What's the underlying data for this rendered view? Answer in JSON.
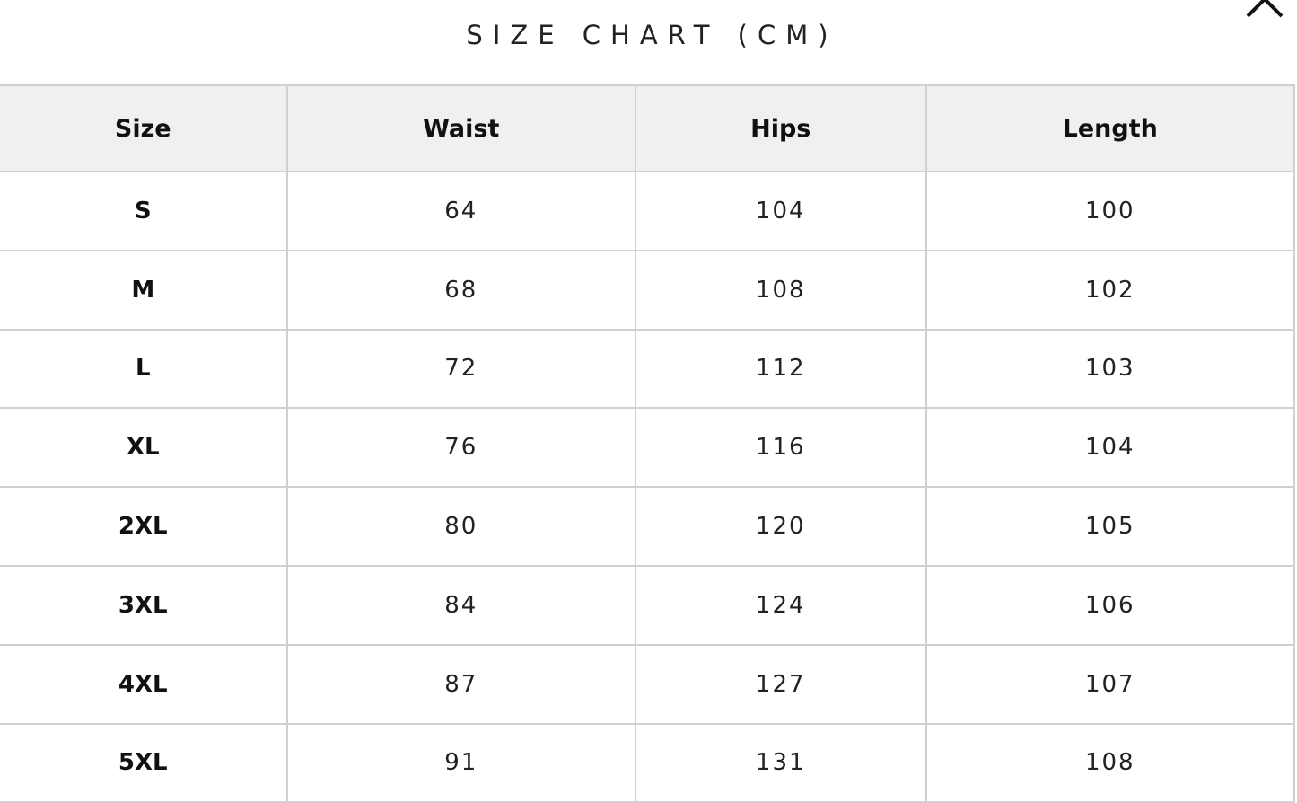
{
  "title": "SIZE CHART (CM)",
  "close_icon": "close-icon",
  "table": {
    "headers": [
      "Size",
      "Waist",
      "Hips",
      "Length"
    ],
    "rows": [
      [
        "S",
        "64",
        "104",
        "100"
      ],
      [
        "M",
        "68",
        "108",
        "102"
      ],
      [
        "L",
        "72",
        "112",
        "103"
      ],
      [
        "XL",
        "76",
        "116",
        "104"
      ],
      [
        "2XL",
        "80",
        "120",
        "105"
      ],
      [
        "3XL",
        "84",
        "124",
        "106"
      ],
      [
        "4XL",
        "87",
        "127",
        "107"
      ],
      [
        "5XL",
        "91",
        "131",
        "108"
      ]
    ]
  },
  "colors": {
    "header_bg": "#f0f0f0",
    "border": "#d0d0d0",
    "text": "#111111"
  }
}
